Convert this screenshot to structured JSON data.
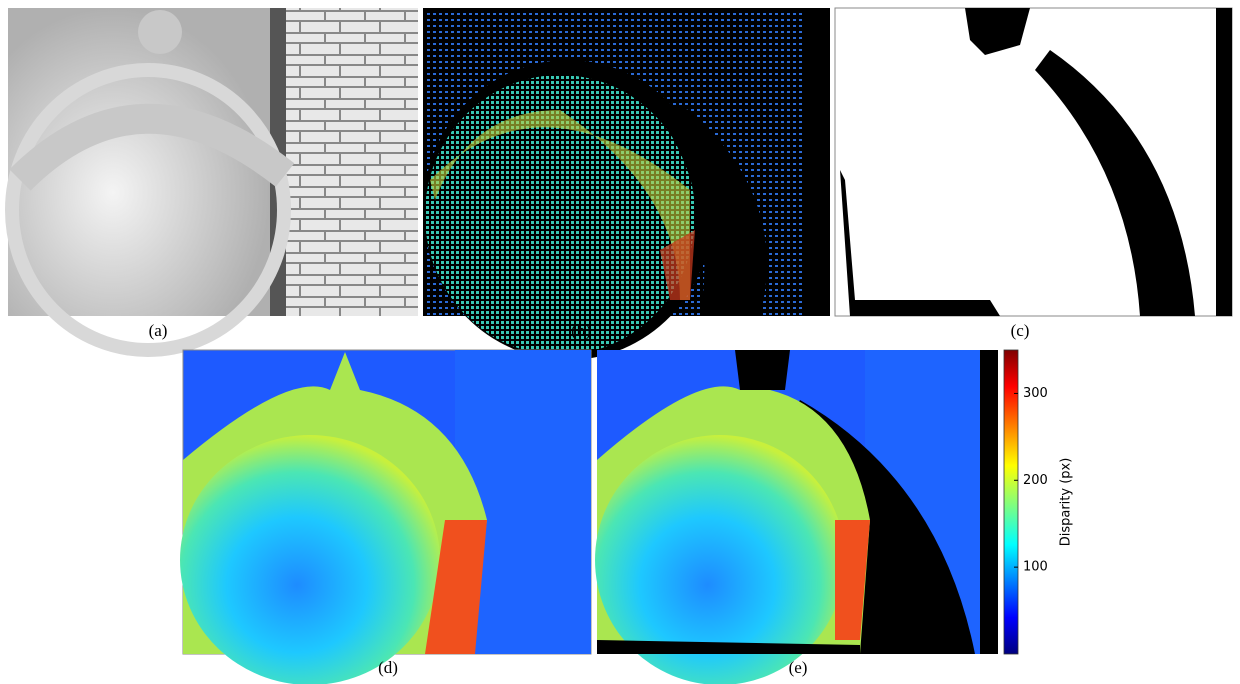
{
  "panels": [
    {
      "label": "(a)"
    },
    {
      "label": "(b)"
    },
    {
      "label": "(c)"
    },
    {
      "label": "(d)"
    },
    {
      "label": "(e)"
    }
  ],
  "colorbar": {
    "label": "Disparity (px)",
    "lim": [
      0,
      350
    ],
    "ticks": [
      100,
      200,
      300
    ]
  }
}
